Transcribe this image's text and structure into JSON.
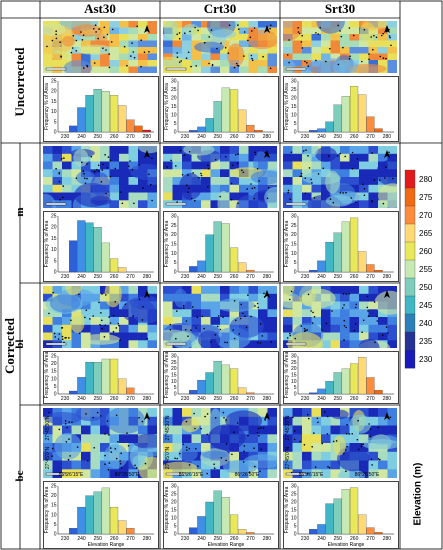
{
  "columns": [
    "Ast30",
    "Crt30",
    "Srt30"
  ],
  "row_groups": {
    "uncorrected": "Uncorrected",
    "corrected": "Corrected"
  },
  "row_labels": [
    "Uncorrected",
    "m",
    "bl",
    "bc"
  ],
  "hist_ylabel": "Frequency % of Area",
  "hist_xlabel": "Elevation Range",
  "hist_xticks": [
    "230",
    "240",
    "250",
    "260",
    "270",
    "280"
  ],
  "coords": {
    "lat1": "27°45'0\"N",
    "lat2": "27°45'30\"N",
    "lon1": "86°26'15\"E",
    "lon2": "86°26'50\"E"
  },
  "colorbar": {
    "title": "Elevation (m)",
    "labels": [
      "280",
      "275",
      "270",
      "265",
      "260",
      "255",
      "250",
      "245",
      "240",
      "235",
      "230"
    ],
    "colors": [
      "#e31a1c",
      "#f16913",
      "#fd8d3c",
      "#fed976",
      "#e8e85a",
      "#c7e9b4",
      "#7fcdbb",
      "#41b6c4",
      "#2c7fb8",
      "#253494",
      "#1a1ab8"
    ]
  },
  "bar_colors": [
    "#1a1ab8",
    "#2c5fd8",
    "#3f8fe6",
    "#41b6c4",
    "#7fcdbb",
    "#c7e9b4",
    "#e8e85a",
    "#fed976",
    "#fd8d3c",
    "#f16913",
    "#e31a1c"
  ],
  "chart_data": [
    {
      "type": "bar",
      "row": "Uncorrected",
      "column": "Ast30",
      "ylim": [
        0,
        25
      ],
      "yticks": [
        0,
        5,
        10,
        15,
        20,
        25
      ],
      "values": [
        0,
        3,
        12,
        18,
        21,
        20,
        18,
        13,
        6,
        3,
        1
      ]
    },
    {
      "type": "bar",
      "row": "Uncorrected",
      "column": "Crt30",
      "ylim": [
        0,
        30
      ],
      "yticks": [
        0,
        5,
        10,
        15,
        20,
        25,
        30
      ],
      "values": [
        0,
        1,
        3,
        8,
        18,
        26,
        25,
        13,
        4,
        1,
        0
      ]
    },
    {
      "type": "bar",
      "row": "Uncorrected",
      "column": "Srt30",
      "ylim": [
        0,
        30
      ],
      "yticks": [
        0,
        5,
        10,
        15,
        20,
        25,
        30
      ],
      "values": [
        0,
        1,
        2,
        6,
        16,
        21,
        27,
        22,
        9,
        2,
        0
      ]
    },
    {
      "type": "bar",
      "row": "m",
      "column": "Ast30",
      "ylim": [
        0,
        25
      ],
      "yticks": [
        0,
        5,
        10,
        15,
        20,
        25
      ],
      "values": [
        0,
        14,
        23,
        22,
        20,
        13,
        6,
        2,
        0,
        0,
        0
      ]
    },
    {
      "type": "bar",
      "row": "m",
      "column": "Crt30",
      "ylim": [
        0,
        30
      ],
      "yticks": [
        0,
        5,
        10,
        15,
        20,
        25,
        30
      ],
      "values": [
        0,
        3,
        6,
        20,
        27,
        26,
        13,
        5,
        1,
        0,
        0
      ]
    },
    {
      "type": "bar",
      "row": "m",
      "column": "Srt30",
      "ylim": [
        0,
        30
      ],
      "yticks": [
        0,
        5,
        10,
        15,
        20,
        25,
        30
      ],
      "values": [
        0,
        1,
        6,
        16,
        21,
        27,
        29,
        11,
        4,
        1,
        0
      ]
    },
    {
      "type": "bar",
      "row": "bl",
      "column": "Ast30",
      "ylim": [
        0,
        25
      ],
      "yticks": [
        0,
        5,
        10,
        15,
        20,
        25
      ],
      "values": [
        0,
        2,
        11,
        21,
        21,
        23,
        23,
        10,
        4,
        0,
        0
      ]
    },
    {
      "type": "bar",
      "row": "bl",
      "column": "Crt30",
      "ylim": [
        0,
        30
      ],
      "yticks": [
        0,
        5,
        10,
        15,
        20,
        25,
        30
      ],
      "values": [
        0,
        3,
        11,
        17,
        26,
        23,
        20,
        5,
        1,
        0,
        0
      ]
    },
    {
      "type": "bar",
      "row": "bl",
      "column": "Srt30",
      "ylim": [
        0,
        30
      ],
      "yticks": [
        0,
        5,
        10,
        15,
        20,
        25,
        30
      ],
      "values": [
        0,
        1,
        4,
        10,
        17,
        20,
        24,
        29,
        13,
        3,
        0
      ]
    },
    {
      "type": "bar",
      "row": "bc",
      "column": "Ast30",
      "ylim": [
        0,
        25
      ],
      "yticks": [
        0,
        5,
        10,
        15,
        20,
        25
      ],
      "values": [
        0,
        3,
        14,
        20,
        22,
        24,
        14,
        7,
        3,
        0,
        0
      ]
    },
    {
      "type": "bar",
      "row": "bc",
      "column": "Crt30",
      "ylim": [
        0,
        30
      ],
      "yticks": [
        0,
        5,
        10,
        15,
        20,
        25,
        30
      ],
      "values": [
        0,
        4,
        11,
        20,
        27,
        23,
        12,
        3,
        1,
        0,
        0
      ]
    },
    {
      "type": "bar",
      "row": "bc",
      "column": "Srt30",
      "ylim": [
        0,
        30
      ],
      "yticks": [
        0,
        5,
        10,
        15,
        20,
        25,
        30
      ],
      "values": [
        0,
        3,
        6,
        19,
        22,
        28,
        29,
        12,
        4,
        1,
        0
      ]
    }
  ]
}
